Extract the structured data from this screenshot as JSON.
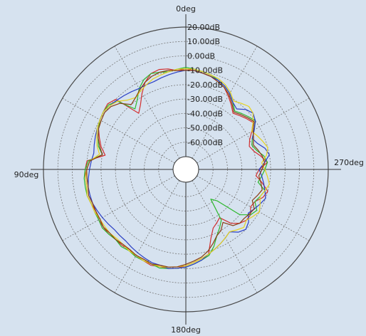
{
  "chart_data": {
    "type": "polar",
    "angle_labels": [
      {
        "angle": 0,
        "text": "0deg"
      },
      {
        "angle": 90,
        "text": "90deg"
      },
      {
        "angle": 180,
        "text": "180deg"
      },
      {
        "angle": 270,
        "text": "270deg"
      }
    ],
    "radial_ticks": [
      "20.00dB",
      "10.00dB",
      "0.00dB",
      "-10.00dB",
      "-20.00dB",
      "-30.00dB",
      "-40.00dB",
      "-50.00dB",
      "-60.00dB"
    ],
    "r_range": [
      -70,
      20
    ],
    "angular_grid_step_deg": 30,
    "radial_grid_style": "dashed",
    "angle_direction": "counterclockwise-from-top",
    "series": [
      {
        "color": "#d22f2f",
        "values": [
          -9,
          -10,
          -8,
          -7,
          -8,
          -12,
          -18,
          -24,
          -28,
          -10,
          -8,
          -9,
          -10,
          -12,
          -15,
          -18,
          -22,
          -10,
          -9,
          -9,
          -9,
          -8,
          -9,
          -10,
          -9,
          -9,
          -9,
          -10,
          -10,
          -11,
          -9,
          -9,
          -8,
          -9,
          -9,
          -10,
          -12,
          -14,
          -16,
          -18,
          -28,
          -34,
          -36,
          -38,
          -30,
          -26,
          -24,
          -24,
          -27,
          -26,
          -22,
          -20,
          -25,
          -30,
          -28,
          -22,
          -26,
          -30,
          -32,
          -30,
          -26,
          -22,
          -24,
          -26,
          -28,
          -24,
          -20,
          -16,
          -14,
          -12,
          -11,
          -10
        ]
      },
      {
        "color": "#2db82d",
        "values": [
          -8,
          -9,
          -10,
          -9,
          -8,
          -10,
          -14,
          -20,
          -24,
          -12,
          -9,
          -9,
          -10,
          -12,
          -14,
          -16,
          -20,
          -11,
          -9,
          -8,
          -8,
          -8,
          -9,
          -9,
          -9,
          -8,
          -9,
          -10,
          -9,
          -10,
          -9,
          -9,
          -9,
          -8,
          -9,
          -10,
          -11,
          -13,
          -15,
          -17,
          -22,
          -28,
          -32,
          -36,
          -52,
          -48,
          -30,
          -24,
          -22,
          -26,
          -24,
          -22,
          -28,
          -26,
          -24,
          -22,
          -24,
          -28,
          -30,
          -28,
          -24,
          -20,
          -22,
          -24,
          -26,
          -22,
          -18,
          -15,
          -13,
          -11,
          -10,
          -9
        ]
      },
      {
        "color": "#2a3fc4",
        "values": [
          -10,
          -11,
          -12,
          -13,
          -14,
          -14,
          -14,
          -13,
          -12,
          -11,
          -10,
          -9,
          -10,
          -11,
          -12,
          -13,
          -14,
          -13,
          -12,
          -11,
          -10,
          -10,
          -10,
          -11,
          -12,
          -13,
          -14,
          -14,
          -14,
          -13,
          -12,
          -11,
          -10,
          -10,
          -9,
          -10,
          -11,
          -13,
          -15,
          -18,
          -20,
          -22,
          -24,
          -26,
          -22,
          -20,
          -22,
          -26,
          -24,
          -22,
          -20,
          -22,
          -24,
          -26,
          -28,
          -24,
          -20,
          -22,
          -26,
          -28,
          -24,
          -20,
          -18,
          -20,
          -24,
          -22,
          -18,
          -15,
          -13,
          -12,
          -11,
          -10
        ]
      },
      {
        "color": "#e6d21e",
        "values": [
          -9,
          -9,
          -10,
          -11,
          -12,
          -14,
          -16,
          -18,
          -16,
          -12,
          -10,
          -9,
          -10,
          -11,
          -13,
          -15,
          -18,
          -12,
          -10,
          -9,
          -9,
          -8,
          -9,
          -9,
          -10,
          -10,
          -10,
          -11,
          -11,
          -10,
          -10,
          -9,
          -9,
          -9,
          -10,
          -11,
          -12,
          -14,
          -16,
          -18,
          -20,
          -22,
          -24,
          -26,
          -24,
          -22,
          -24,
          -22,
          -20,
          -22,
          -24,
          -22,
          -20,
          -22,
          -24,
          -26,
          -22,
          -20,
          -22,
          -24,
          -26,
          -22,
          -18,
          -17,
          -19,
          -21,
          -17,
          -14,
          -12,
          -11,
          -10,
          -9
        ]
      },
      {
        "color": "#8a3d12",
        "values": [
          -10,
          -10,
          -9,
          -9,
          -10,
          -12,
          -15,
          -18,
          -20,
          -14,
          -11,
          -10,
          -11,
          -12,
          -14,
          -17,
          -20,
          -12,
          -10,
          -10,
          -10,
          -9,
          -10,
          -10,
          -10,
          -9,
          -10,
          -10,
          -11,
          -11,
          -10,
          -10,
          -9,
          -10,
          -10,
          -11,
          -13,
          -15,
          -17,
          -20,
          -24,
          -28,
          -30,
          -34,
          -28,
          -26,
          -26,
          -25,
          -24,
          -28,
          -26,
          -24,
          -26,
          -28,
          -26,
          -24,
          -25,
          -27,
          -29,
          -27,
          -25,
          -21,
          -23,
          -25,
          -27,
          -23,
          -19,
          -16,
          -14,
          -12,
          -11,
          -10
        ]
      }
    ]
  }
}
